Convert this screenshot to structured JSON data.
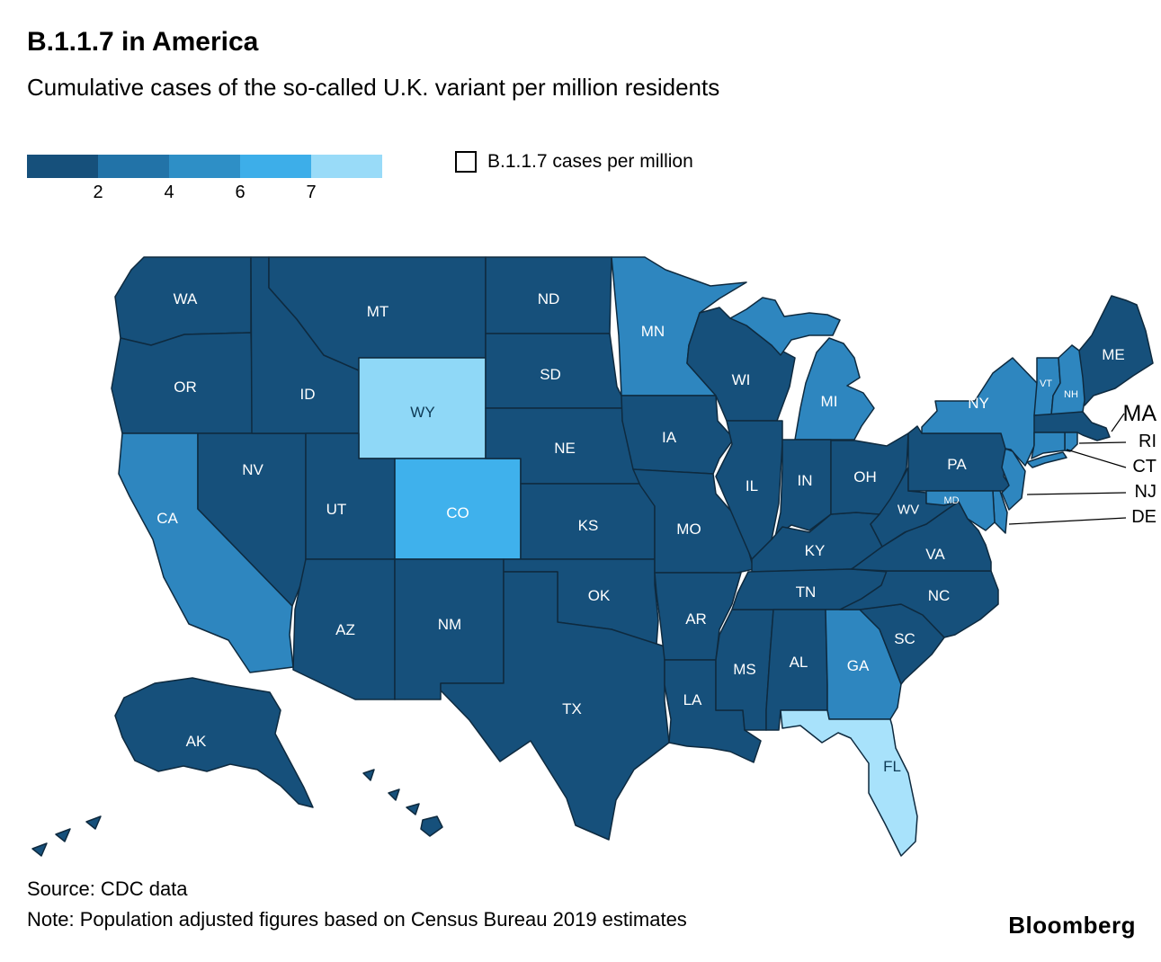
{
  "header": {
    "title": "B.1.1.7 in America",
    "subtitle": "Cumulative cases of the so-called U.K. variant per million residents"
  },
  "legend": {
    "colors": [
      "#16507B",
      "#2273A8",
      "#2E8FC6",
      "#3DAEE9",
      "#99DBF8"
    ],
    "ticks": [
      "2",
      "4",
      "6",
      "7"
    ],
    "key_label": "B.1.1.7 cases per million"
  },
  "footer": {
    "source": "Source: CDC data",
    "note": "Note: Population adjusted figures based on Census Bureau 2019 estimates",
    "brand": "Bloomberg"
  },
  "chart_data": {
    "type": "heatmap",
    "subtype": "us-state-choropleth",
    "title": "B.1.1.7 in America",
    "subtitle": "Cumulative cases of the so-called U.K. variant per million residents",
    "unit": "cumulative B.1.1.7 cases per million residents",
    "legend_thresholds": [
      2,
      4,
      6,
      7
    ],
    "legend_colors": [
      "#16507B",
      "#2273A8",
      "#2E8FC6",
      "#3DAEE9",
      "#99DBF8"
    ],
    "values_estimated_from_color": true,
    "states": [
      {
        "id": "WA",
        "label": "WA",
        "value": 1,
        "color": "#16507B"
      },
      {
        "id": "OR",
        "label": "OR",
        "value": 1,
        "color": "#16507B"
      },
      {
        "id": "CA",
        "label": "CA",
        "value": 3,
        "color": "#2E86BF"
      },
      {
        "id": "NV",
        "label": "NV",
        "value": 1,
        "color": "#16507B"
      },
      {
        "id": "ID",
        "label": "ID",
        "value": 1,
        "color": "#16507B"
      },
      {
        "id": "MT",
        "label": "MT",
        "value": 1,
        "color": "#16507B"
      },
      {
        "id": "WY",
        "label": "WY",
        "value": 7.5,
        "color": "#8FD8F7"
      },
      {
        "id": "UT",
        "label": "UT",
        "value": 1,
        "color": "#16507B"
      },
      {
        "id": "CO",
        "label": "CO",
        "value": 6.5,
        "color": "#3FB1EC"
      },
      {
        "id": "AZ",
        "label": "AZ",
        "value": 1,
        "color": "#16507B"
      },
      {
        "id": "NM",
        "label": "NM",
        "value": 1,
        "color": "#16507B"
      },
      {
        "id": "ND",
        "label": "ND",
        "value": 1,
        "color": "#16507B"
      },
      {
        "id": "SD",
        "label": "SD",
        "value": 1,
        "color": "#16507B"
      },
      {
        "id": "NE",
        "label": "NE",
        "value": 1,
        "color": "#16507B"
      },
      {
        "id": "KS",
        "label": "KS",
        "value": 1,
        "color": "#16507B"
      },
      {
        "id": "OK",
        "label": "OK",
        "value": 1,
        "color": "#16507B"
      },
      {
        "id": "TX",
        "label": "TX",
        "value": 1,
        "color": "#16507B"
      },
      {
        "id": "MN",
        "label": "MN",
        "value": 3,
        "color": "#2E86BF"
      },
      {
        "id": "IA",
        "label": "IA",
        "value": 1,
        "color": "#16507B"
      },
      {
        "id": "MO",
        "label": "MO",
        "value": 1,
        "color": "#16507B"
      },
      {
        "id": "AR",
        "label": "AR",
        "value": 1,
        "color": "#16507B"
      },
      {
        "id": "LA",
        "label": "LA",
        "value": 1,
        "color": "#16507B"
      },
      {
        "id": "WI",
        "label": "WI",
        "value": 1,
        "color": "#16507B"
      },
      {
        "id": "IL",
        "label": "IL",
        "value": 1,
        "color": "#16507B"
      },
      {
        "id": "MS",
        "label": "MS",
        "value": 1,
        "color": "#16507B"
      },
      {
        "id": "MI",
        "label": "MI",
        "value": 3,
        "color": "#2E86BF"
      },
      {
        "id": "IN",
        "label": "IN",
        "value": 1,
        "color": "#16507B"
      },
      {
        "id": "KY",
        "label": "KY",
        "value": 1,
        "color": "#16507B"
      },
      {
        "id": "TN",
        "label": "TN",
        "value": 1,
        "color": "#16507B"
      },
      {
        "id": "AL",
        "label": "AL",
        "value": 1,
        "color": "#16507B"
      },
      {
        "id": "OH",
        "label": "OH",
        "value": 1,
        "color": "#16507B"
      },
      {
        "id": "GA",
        "label": "GA",
        "value": 3,
        "color": "#2E86BF"
      },
      {
        "id": "FL",
        "label": "FL",
        "value": 8,
        "color": "#A8E2FB"
      },
      {
        "id": "SC",
        "label": "SC",
        "value": 1,
        "color": "#16507B"
      },
      {
        "id": "NC",
        "label": "NC",
        "value": 1,
        "color": "#16507B"
      },
      {
        "id": "VA",
        "label": "VA",
        "value": 1,
        "color": "#16507B"
      },
      {
        "id": "WV",
        "label": "WV",
        "value": 1,
        "color": "#16507B"
      },
      {
        "id": "PA",
        "label": "PA",
        "value": 1,
        "color": "#16507B"
      },
      {
        "id": "NY",
        "label": "NY",
        "value": 3,
        "color": "#2E86BF"
      },
      {
        "id": "ME",
        "label": "ME",
        "value": 1,
        "color": "#16507B"
      },
      {
        "id": "VT",
        "label": "VT",
        "value": 3,
        "color": "#2E86BF"
      },
      {
        "id": "NH",
        "label": "NH",
        "value": 3,
        "color": "#2E86BF"
      },
      {
        "id": "MA",
        "label": "MA",
        "value": 1,
        "color": "#16507B"
      },
      {
        "id": "RI",
        "label": "RI",
        "value": 3,
        "color": "#2E86BF"
      },
      {
        "id": "CT",
        "label": "CT",
        "value": 3,
        "color": "#2E86BF"
      },
      {
        "id": "NJ",
        "label": "NJ",
        "value": 3,
        "color": "#2E86BF"
      },
      {
        "id": "DE",
        "label": "DE",
        "value": 3,
        "color": "#2E86BF"
      },
      {
        "id": "MD",
        "label": "MD",
        "value": 3,
        "color": "#2E86BF"
      },
      {
        "id": "AK",
        "label": "AK",
        "value": 1,
        "color": "#16507B"
      },
      {
        "id": "HI",
        "label": "",
        "value": 1,
        "color": "#16507B"
      }
    ]
  }
}
